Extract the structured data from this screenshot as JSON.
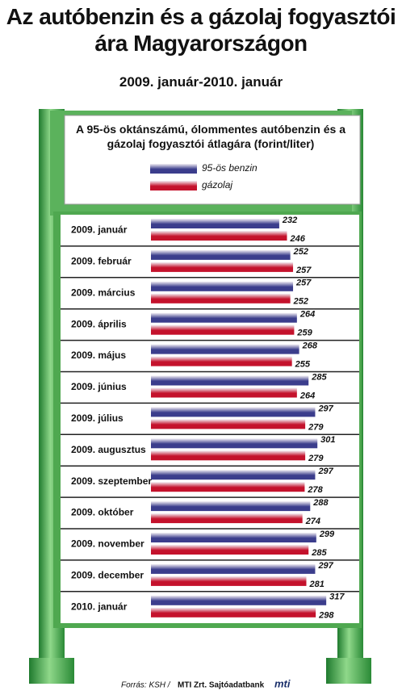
{
  "chart_data": {
    "type": "hbar",
    "title": "Az autóbenzin és a gázolaj fogyasztói ára Magyarországon",
    "subtitle": "2009. január-2010. január",
    "chart_title": "A 95-ös oktánszámú, ólommentes autóbenzin és a gázolaj fogyasztói átlagára (forint/liter)",
    "categories": [
      "2009. január",
      "2009. február",
      "2009. március",
      "2009. április",
      "2009. május",
      "2009. június",
      "2009. július",
      "2009. augusztus",
      "2009. szeptember",
      "2009. október",
      "2009. november",
      "2009. december",
      "2010. január"
    ],
    "series": [
      {
        "name": "95-ös benzin",
        "color": "#3b3d8c",
        "values": [
          232,
          252,
          257,
          264,
          268,
          285,
          297,
          301,
          297,
          288,
          299,
          297,
          317
        ]
      },
      {
        "name": "gázolaj",
        "color": "#c4122c",
        "values": [
          246,
          257,
          252,
          259,
          255,
          264,
          279,
          279,
          278,
          274,
          285,
          281,
          298
        ]
      }
    ],
    "source_prefix": "Forrás: KSH /",
    "source_agency": "MTI Zrt. Sajtóadatbank",
    "logo": "mti"
  }
}
